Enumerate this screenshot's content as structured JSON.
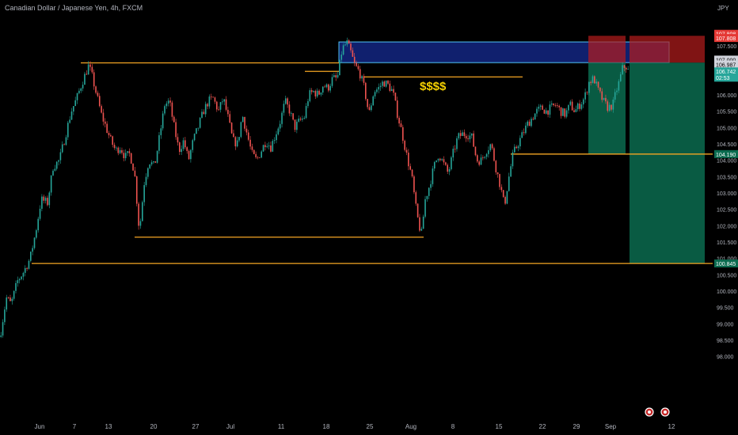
{
  "header": {
    "symbol_title": "Canadian Dollar / Japanese Yen, 4h, FXCM",
    "currency": "JPY"
  },
  "annotation": {
    "text": "$$$$",
    "color": "#f5d000"
  },
  "colors": {
    "background": "#000000",
    "up_candle": "#26a69a",
    "down_candle": "#ef5350",
    "level_line": "#f5a623",
    "supply_zone": "#12237a",
    "supply_border": "#4fc3f7",
    "stop_zone": "#b71c1c",
    "target_zone": "#0b6b4f",
    "axis_text": "#b2b5be"
  },
  "chart_data": {
    "type": "candlestick",
    "title": "Canadian Dollar / Japanese Yen, 4h, FXCM",
    "currency": "JPY",
    "y_axis": {
      "range": [
        97.6,
        108.2
      ],
      "ticks": [
        "107.500",
        "107.000",
        "106.500",
        "106.000",
        "105.500",
        "105.000",
        "104.500",
        "104.000",
        "103.500",
        "103.000",
        "102.500",
        "102.000",
        "101.500",
        "101.000",
        "100.500",
        "100.000",
        "99.500",
        "99.000",
        "98.500",
        "98.000"
      ]
    },
    "x_axis": {
      "ticks": [
        "Jun",
        "7",
        "13",
        "20",
        "27",
        "Jul",
        "11",
        "18",
        "25",
        "Aug",
        "8",
        "15",
        "22",
        "29",
        "Sep",
        "12"
      ]
    },
    "price_path": [
      [
        0,
        98.6
      ],
      [
        8,
        99.8
      ],
      [
        14,
        99.6
      ],
      [
        22,
        100.3
      ],
      [
        30,
        100.6
      ],
      [
        38,
        101.0
      ],
      [
        45,
        101.8
      ],
      [
        52,
        102.8
      ],
      [
        60,
        102.7
      ],
      [
        67,
        103.8
      ],
      [
        75,
        104.0
      ],
      [
        83,
        104.8
      ],
      [
        90,
        105.5
      ],
      [
        97,
        105.9
      ],
      [
        104,
        106.4
      ],
      [
        112,
        106.9
      ],
      [
        116,
        106.6
      ],
      [
        122,
        106.0
      ],
      [
        128,
        105.4
      ],
      [
        134,
        105.0
      ],
      [
        140,
        104.6
      ],
      [
        146,
        104.3
      ],
      [
        152,
        104.4
      ],
      [
        158,
        104.1
      ],
      [
        164,
        104.2
      ],
      [
        170,
        103.6
      ],
      [
        176,
        101.8
      ],
      [
        182,
        103.3
      ],
      [
        188,
        104.0
      ],
      [
        195,
        103.8
      ],
      [
        202,
        104.8
      ],
      [
        208,
        105.7
      ],
      [
        214,
        105.8
      ],
      [
        220,
        105.0
      ],
      [
        226,
        104.3
      ],
      [
        232,
        104.6
      ],
      [
        238,
        104.0
      ],
      [
        244,
        104.6
      ],
      [
        250,
        105.0
      ],
      [
        257,
        105.5
      ],
      [
        263,
        105.8
      ],
      [
        269,
        105.9
      ],
      [
        276,
        105.5
      ],
      [
        282,
        105.9
      ],
      [
        288,
        105.3
      ],
      [
        294,
        104.6
      ],
      [
        300,
        104.5
      ],
      [
        306,
        105.4
      ],
      [
        312,
        104.8
      ],
      [
        318,
        104.2
      ],
      [
        324,
        104.0
      ],
      [
        330,
        104.3
      ],
      [
        336,
        104.6
      ],
      [
        342,
        104.4
      ],
      [
        348,
        104.8
      ],
      [
        354,
        105.2
      ],
      [
        360,
        105.8
      ],
      [
        366,
        105.5
      ],
      [
        372,
        105.0
      ],
      [
        378,
        105.2
      ],
      [
        384,
        105.3
      ],
      [
        390,
        106.0
      ],
      [
        396,
        106.1
      ],
      [
        402,
        106.0
      ],
      [
        408,
        106.3
      ],
      [
        414,
        106.2
      ],
      [
        420,
        106.5
      ],
      [
        426,
        106.5
      ],
      [
        432,
        107.4
      ],
      [
        438,
        107.6
      ],
      [
        443,
        107.3
      ],
      [
        448,
        106.9
      ],
      [
        454,
        106.7
      ],
      [
        460,
        106.2
      ],
      [
        466,
        105.4
      ],
      [
        472,
        106.1
      ],
      [
        478,
        106.2
      ],
      [
        484,
        106.4
      ],
      [
        490,
        106.3
      ],
      [
        496,
        106.1
      ],
      [
        502,
        105.4
      ],
      [
        508,
        104.8
      ],
      [
        514,
        104.1
      ],
      [
        520,
        103.5
      ],
      [
        526,
        102.4
      ],
      [
        532,
        101.7
      ],
      [
        537,
        102.8
      ],
      [
        542,
        103.2
      ],
      [
        548,
        103.8
      ],
      [
        554,
        104.2
      ],
      [
        560,
        103.9
      ],
      [
        566,
        103.6
      ],
      [
        572,
        104.2
      ],
      [
        578,
        104.7
      ],
      [
        584,
        104.8
      ],
      [
        590,
        104.8
      ],
      [
        596,
        104.7
      ],
      [
        602,
        104.0
      ],
      [
        608,
        104.0
      ],
      [
        614,
        104.3
      ],
      [
        620,
        104.5
      ],
      [
        626,
        103.8
      ],
      [
        632,
        103.2
      ],
      [
        637,
        102.6
      ],
      [
        642,
        103.4
      ],
      [
        648,
        104.2
      ],
      [
        654,
        104.5
      ],
      [
        660,
        104.8
      ],
      [
        666,
        105.1
      ],
      [
        672,
        105.3
      ],
      [
        678,
        105.5
      ],
      [
        684,
        105.6
      ],
      [
        690,
        105.5
      ],
      [
        696,
        105.6
      ],
      [
        702,
        105.7
      ],
      [
        708,
        105.5
      ],
      [
        714,
        105.4
      ],
      [
        720,
        105.7
      ],
      [
        726,
        105.5
      ],
      [
        732,
        105.7
      ],
      [
        738,
        105.9
      ],
      [
        744,
        106.4
      ],
      [
        750,
        106.5
      ],
      [
        756,
        106.1
      ],
      [
        762,
        105.8
      ],
      [
        768,
        105.6
      ],
      [
        774,
        105.7
      ],
      [
        778,
        106.1
      ],
      [
        782,
        106.4
      ],
      [
        786,
        106.8
      ],
      [
        790,
        106.9
      ],
      [
        794,
        106.7
      ]
    ],
    "horizontal_levels": [
      {
        "y": 106.98,
        "x_from": 102,
        "x_to": 428
      },
      {
        "y": 106.72,
        "x_from": 385,
        "x_to": 428
      },
      {
        "y": 106.55,
        "x_from": 460,
        "x_to": 660
      },
      {
        "y": 101.65,
        "x_from": 170,
        "x_to": 535
      },
      {
        "y": 100.845,
        "x_from": 40,
        "x_to": 900
      },
      {
        "y": 104.19,
        "x_from": 645,
        "x_to": 900
      }
    ],
    "zones": [
      {
        "kind": "supply",
        "y_top": 107.62,
        "y_bottom": 106.987,
        "x_from": 428,
        "x_to": 845
      },
      {
        "kind": "short-stop",
        "y_top": 107.808,
        "y_bottom": 106.987,
        "x_from": 743,
        "x_to": 790
      },
      {
        "kind": "short-target",
        "y_top": 106.987,
        "y_bottom": 104.19,
        "x_from": 743,
        "x_to": 790
      },
      {
        "kind": "short-stop",
        "y_top": 107.808,
        "y_bottom": 106.987,
        "x_from": 795,
        "x_to": 890
      },
      {
        "kind": "short-target",
        "y_top": 106.987,
        "y_bottom": 100.845,
        "x_from": 795,
        "x_to": 890
      }
    ],
    "price_labels": [
      {
        "text": "107.808",
        "y": 107.87,
        "kind": "stop"
      },
      {
        "text": "107.808",
        "y": 107.74,
        "kind": "stop"
      },
      {
        "text": "107.000",
        "y": 107.08,
        "kind": "neutral"
      },
      {
        "text": "106.987",
        "y": 106.93,
        "kind": "neutral"
      },
      {
        "text": "106.742",
        "y": 106.72,
        "kind": "current",
        "sub": "02:53"
      },
      {
        "text": "104.190",
        "y": 104.19,
        "kind": "target"
      },
      {
        "text": "100.845",
        "y": 100.845,
        "kind": "target"
      }
    ],
    "event_markers": [
      {
        "x": 820
      },
      {
        "x": 840
      }
    ]
  }
}
